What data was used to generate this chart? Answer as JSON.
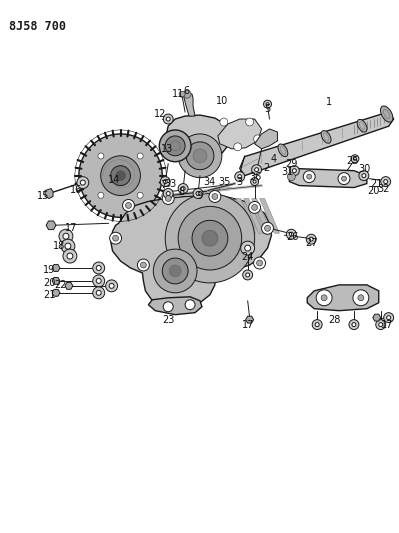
{
  "title": "8J58 700",
  "bg_color": "#ffffff",
  "line_color": "#1a1a1a",
  "title_fontsize": 8.5,
  "label_fontsize": 7,
  "fig_width": 3.99,
  "fig_height": 5.33,
  "dpi": 100,
  "shaft_color": "#c8c8c8",
  "gear_color": "#b0b0b0",
  "cover_color": "#c0c0c0",
  "fastener_color": "#888888"
}
